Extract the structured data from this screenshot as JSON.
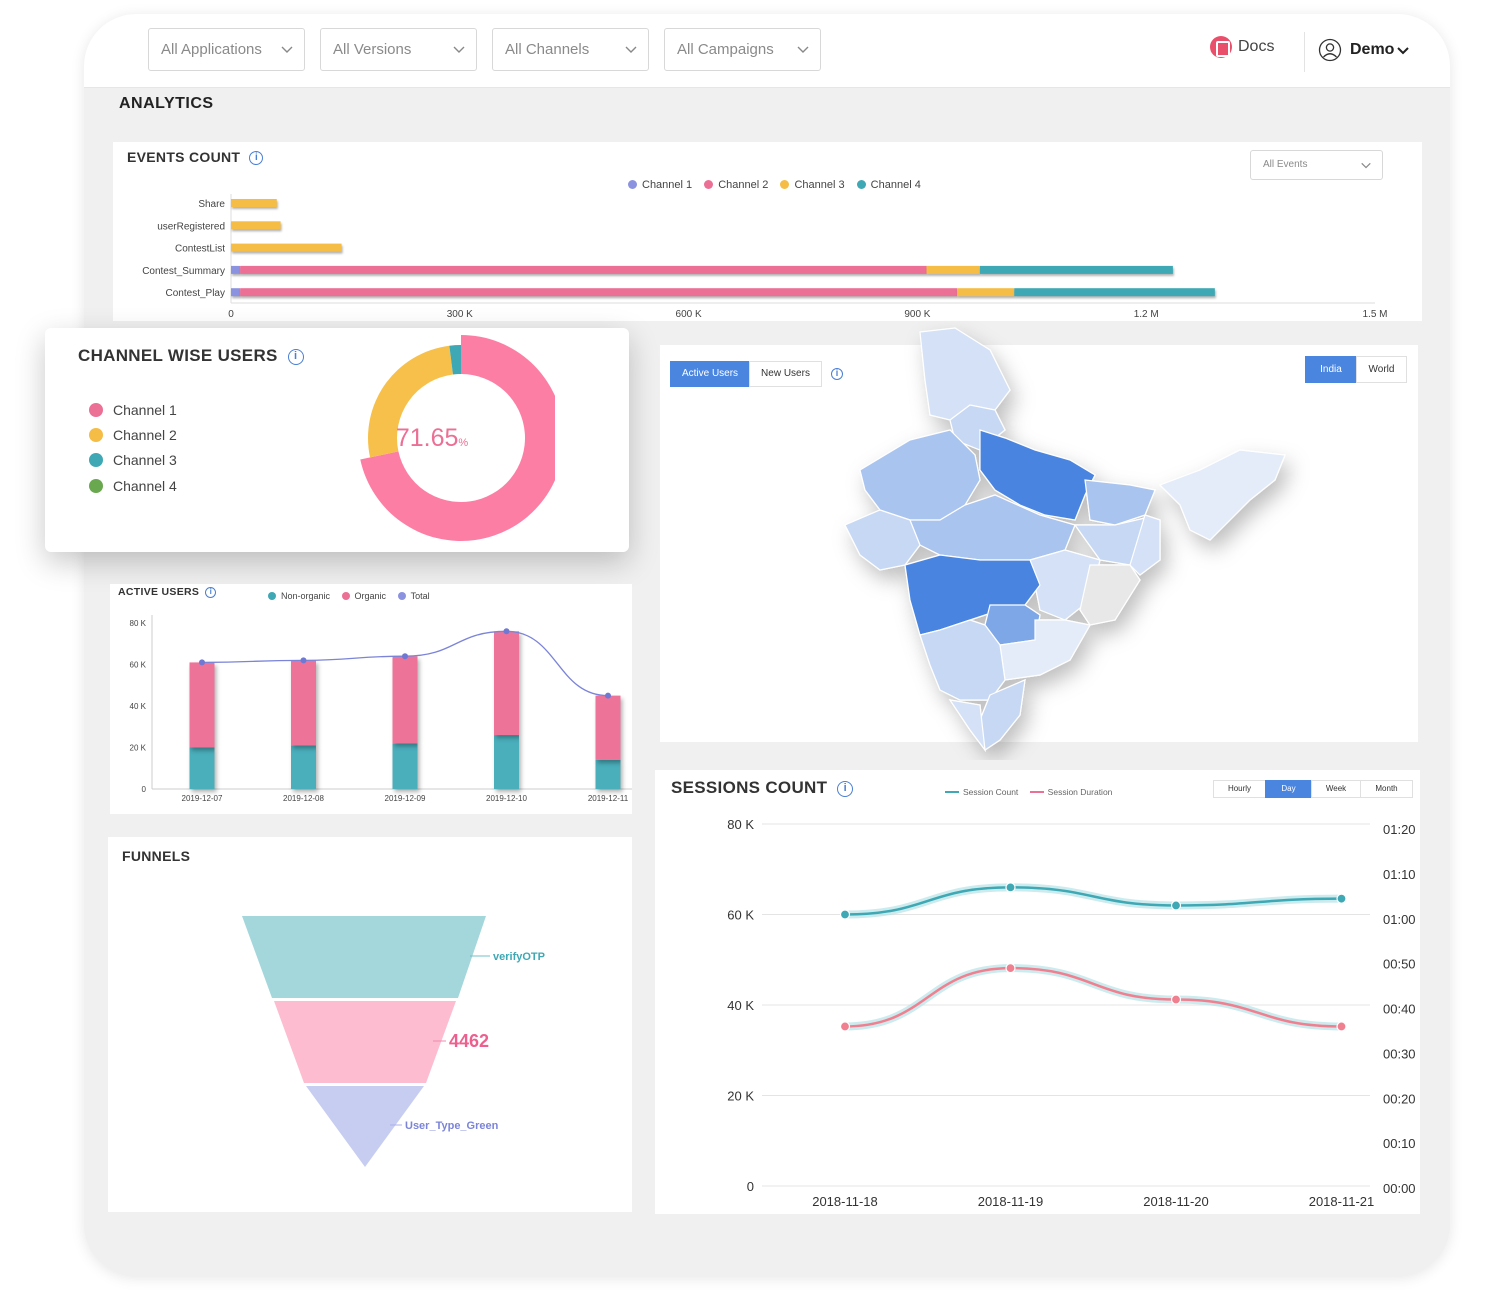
{
  "filters": [
    {
      "label": "All Applications"
    },
    {
      "label": "All Versions"
    },
    {
      "label": "All Channels"
    },
    {
      "label": "All Campaigns"
    }
  ],
  "header": {
    "docs_label": "Docs",
    "user_label": "Demo"
  },
  "page_title": "ANALYTICS",
  "icons": {
    "docs": "docs-icon",
    "user": "user-circle-icon",
    "info": "info-icon",
    "chevron": "chevron-down-icon"
  },
  "colors": {
    "channel1": "#8b93e0",
    "channel2": "#ec6f95",
    "channel3": "#f5bd45",
    "channel4": "#3ea8b4",
    "accent": "#4a85e0"
  },
  "events_count": {
    "title": "EVENTS COUNT",
    "event_select": "All Events",
    "chart_data": {
      "type": "bar",
      "orientation": "horizontal",
      "stacked": true,
      "categories": [
        "Share",
        "userRegistered",
        "ContestList",
        "Contest_Summary",
        "Contest_Play"
      ],
      "series": [
        {
          "name": "Channel 1",
          "values": [
            0,
            0,
            0,
            12000,
            12000
          ]
        },
        {
          "name": "Channel 2",
          "values": [
            0,
            0,
            0,
            900000,
            940000
          ]
        },
        {
          "name": "Channel 3",
          "values": [
            60000,
            65000,
            145000,
            70000,
            75000
          ]
        },
        {
          "name": "Channel 4",
          "values": [
            0,
            0,
            0,
            253000,
            263000
          ]
        }
      ],
      "xticks": [
        "0",
        "300 K",
        "600 K",
        "900 K",
        "1.2 M",
        "1.5 M"
      ],
      "xlim": [
        0,
        1500000
      ],
      "legend": "top-center"
    }
  },
  "channel_wise": {
    "title": "CHANNEL WISE USERS",
    "center_value": "71.65",
    "center_unit": "%",
    "legend": [
      "Channel 1",
      "Channel 2",
      "Channel 3",
      "Channel 4"
    ],
    "chart_data": {
      "type": "pie",
      "donut": true,
      "labels": [
        "Channel 1",
        "Channel 2",
        "Channel 3",
        "Channel 4"
      ],
      "values": [
        71.65,
        26.35,
        2.0,
        0
      ]
    }
  },
  "map": {
    "tabs": [
      "Active Users",
      "New Users"
    ],
    "active_tab": "Active Users",
    "region_tabs": [
      "India",
      "World"
    ],
    "active_region": "India"
  },
  "active_users": {
    "title": "ACTIVE USERS",
    "chart_data": {
      "type": "bar",
      "stacked": true,
      "categories": [
        "2019-12-07",
        "2019-12-08",
        "2019-12-09",
        "2019-12-10",
        "2019-12-11"
      ],
      "series": [
        {
          "name": "Non-organic",
          "values": [
            20000,
            21000,
            22000,
            26000,
            14000
          ]
        },
        {
          "name": "Organic",
          "values": [
            41000,
            41000,
            42000,
            50000,
            31000
          ]
        },
        {
          "name": "Total",
          "type": "line",
          "values": [
            61000,
            62000,
            64000,
            76000,
            45000
          ]
        }
      ],
      "yticks": [
        "80 K",
        "60 K",
        "40 K",
        "20 K",
        "0"
      ],
      "ylim": [
        0,
        80000
      ],
      "legend": "top-center"
    }
  },
  "funnels": {
    "title": "FUNNELS",
    "chart_data": {
      "type": "funnel",
      "stages": [
        {
          "label": "verifyOTP"
        },
        {
          "label": "4462"
        },
        {
          "label": "User_Type_Green"
        }
      ]
    }
  },
  "sessions": {
    "title": "SESSIONS COUNT",
    "granularity": [
      "Hourly",
      "Day",
      "Week",
      "Month"
    ],
    "active_granularity": "Day",
    "chart_data": {
      "type": "line",
      "x": [
        "2018-11-18",
        "2018-11-19",
        "2018-11-20",
        "2018-11-21"
      ],
      "series": [
        {
          "name": "Session Count",
          "axis": "left",
          "values": [
            60000,
            66000,
            62000,
            63500
          ]
        },
        {
          "name": "Session Duration",
          "axis": "right",
          "values": [
            "00:36",
            "00:49",
            "00:42",
            "00:36"
          ]
        }
      ],
      "yticks_left": [
        "80 K",
        "60 K",
        "40 K",
        "20 K",
        "0"
      ],
      "yticks_right": [
        "01:20",
        "01:10",
        "01:00",
        "00:50",
        "00:40",
        "00:30",
        "00:20",
        "00:10",
        "00:00"
      ],
      "ylim_left": [
        0,
        80000
      ],
      "legend": "top-center"
    }
  }
}
